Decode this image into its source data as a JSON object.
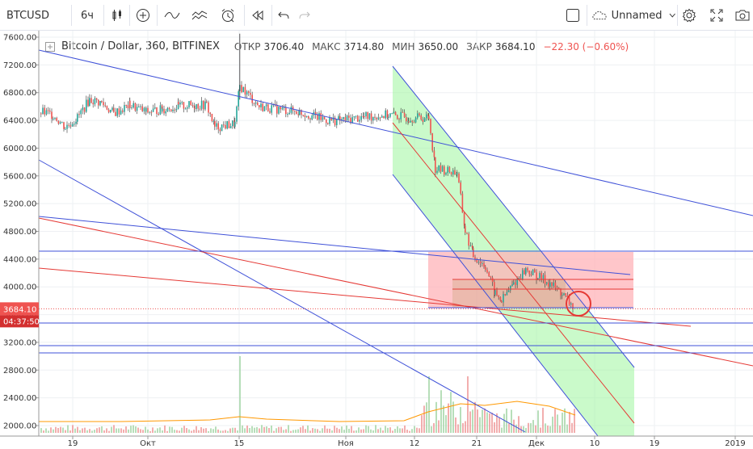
{
  "toolbar": {
    "symbol": "BTCUSD",
    "interval": "6ч",
    "layout_name": "Unnamed"
  },
  "legend": {
    "title": "Bitcoin / Dollar, 360, BITFINEX",
    "open_label": "ОТКР",
    "open": "3706.40",
    "high_label": "МАКС",
    "high": "3714.80",
    "low_label": "МИН",
    "low": "3650.00",
    "close_label": "ЗАКР",
    "close": "3684.10",
    "change": "−22.30 (−0.60%)"
  },
  "price_axis": {
    "ticks": [
      "7600.00",
      "7200.00",
      "6800.00",
      "6400.00",
      "6000.00",
      "5600.00",
      "5200.00",
      "4800.00",
      "4400.00",
      "4000.00",
      "3600.00",
      "3200.00",
      "2800.00",
      "2400.00",
      "2000.00"
    ],
    "last_price": "3684.10",
    "countdown": "04:37:50"
  },
  "time_axis": {
    "ticks": [
      "19",
      "Окт",
      "15",
      "Ноя",
      "12",
      "21",
      "Дек",
      "10",
      "19",
      "2019"
    ]
  },
  "colors": {
    "up": "#26a69a",
    "down": "#ef5350",
    "trend_blue": "#3f51d8",
    "trend_red": "#e53935",
    "channel_fill": "#9ef59e",
    "zone_fill": "#ffb3b8",
    "price_badge": "#ef5350"
  },
  "chart_data": {
    "type": "candlestick",
    "title": "Bitcoin / Dollar, 360, BITFINEX",
    "y_range": [
      1900,
      7650
    ],
    "grid": true,
    "close_path": [
      [
        "Sep 14",
        6520
      ],
      [
        "Sep 16",
        6480
      ],
      [
        "Sep 18",
        6300
      ],
      [
        "Sep 20",
        6460
      ],
      [
        "Sep 22",
        6700
      ],
      [
        "Sep 24",
        6640
      ],
      [
        "Sep 27",
        6520
      ],
      [
        "Sep 30",
        6600
      ],
      [
        "Oct 03",
        6520
      ],
      [
        "Oct 06",
        6580
      ],
      [
        "Oct 09",
        6620
      ],
      [
        "Oct 11",
        6300
      ],
      [
        "Oct 14",
        6350
      ],
      [
        "Oct 15",
        6900
      ],
      [
        "Oct 18",
        6580
      ],
      [
        "Oct 24",
        6480
      ],
      [
        "Oct 30",
        6350
      ],
      [
        "Nov 04",
        6400
      ],
      [
        "Nov 08",
        6450
      ],
      [
        "Nov 12",
        6450
      ],
      [
        "Nov 14",
        6380
      ],
      [
        "Nov 15",
        5650
      ],
      [
        "Nov 17",
        5600
      ],
      [
        "Nov 19",
        4800
      ],
      [
        "Nov 21",
        4450
      ],
      [
        "Nov 24",
        3900
      ],
      [
        "Nov 25",
        3800
      ],
      [
        "Nov 27",
        4000
      ],
      [
        "Nov 29",
        4200
      ],
      [
        "Dec 01",
        4100
      ],
      [
        "Dec 03",
        3850
      ],
      [
        "Dec 05",
        3684
      ]
    ]
  }
}
